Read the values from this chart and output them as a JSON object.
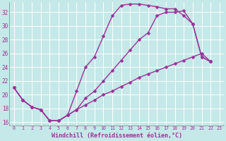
{
  "xlabel": "Windchill (Refroidissement éolien,°C)",
  "background_color": "#c5e8e8",
  "grid_color": "#aacccc",
  "line_color": "#993399",
  "line_width": 1.0,
  "marker": "D",
  "marker_size": 2.5,
  "xlim": [
    -0.5,
    23.5
  ],
  "ylim": [
    15.5,
    33.5
  ],
  "xticks": [
    0,
    1,
    2,
    3,
    4,
    5,
    6,
    7,
    8,
    9,
    10,
    11,
    12,
    13,
    14,
    15,
    16,
    17,
    18,
    19,
    20,
    21,
    22,
    23
  ],
  "yticks": [
    16,
    18,
    20,
    22,
    24,
    26,
    28,
    30,
    32
  ],
  "c1_x": [
    0,
    1,
    2,
    3,
    4,
    5,
    6,
    7,
    8,
    9,
    10,
    11,
    12,
    13,
    14,
    15,
    16,
    17,
    18,
    19,
    20,
    21,
    22
  ],
  "c1_y": [
    21.0,
    19.2,
    18.2,
    17.8,
    16.2,
    16.2,
    17.0,
    20.5,
    24.0,
    25.5,
    28.5,
    31.5,
    33.0,
    33.2,
    33.2,
    33.0,
    32.8,
    32.5,
    32.5,
    31.5,
    30.3,
    25.5,
    24.8
  ],
  "c2_x": [
    0,
    1,
    2,
    3,
    4,
    5,
    6,
    7,
    8,
    9,
    10,
    11,
    12,
    13,
    14,
    15,
    16,
    17,
    18,
    19,
    20,
    21,
    22
  ],
  "c2_y": [
    21.0,
    19.2,
    18.2,
    17.8,
    16.2,
    16.2,
    17.0,
    17.8,
    19.5,
    20.5,
    22.0,
    23.5,
    25.0,
    26.5,
    28.0,
    29.0,
    31.5,
    32.0,
    32.0,
    32.2,
    30.3,
    25.5,
    24.8
  ],
  "c3_x": [
    0,
    1,
    2,
    3,
    4,
    5,
    6,
    7,
    8,
    9,
    10,
    11,
    12,
    13,
    14,
    15,
    16,
    17,
    18,
    19,
    20,
    21,
    22
  ],
  "c3_y": [
    21.0,
    19.2,
    18.2,
    17.8,
    16.2,
    16.2,
    17.0,
    17.8,
    18.5,
    19.2,
    20.0,
    20.5,
    21.2,
    21.8,
    22.5,
    23.0,
    23.5,
    24.0,
    24.5,
    25.0,
    25.5,
    26.0,
    24.8
  ]
}
